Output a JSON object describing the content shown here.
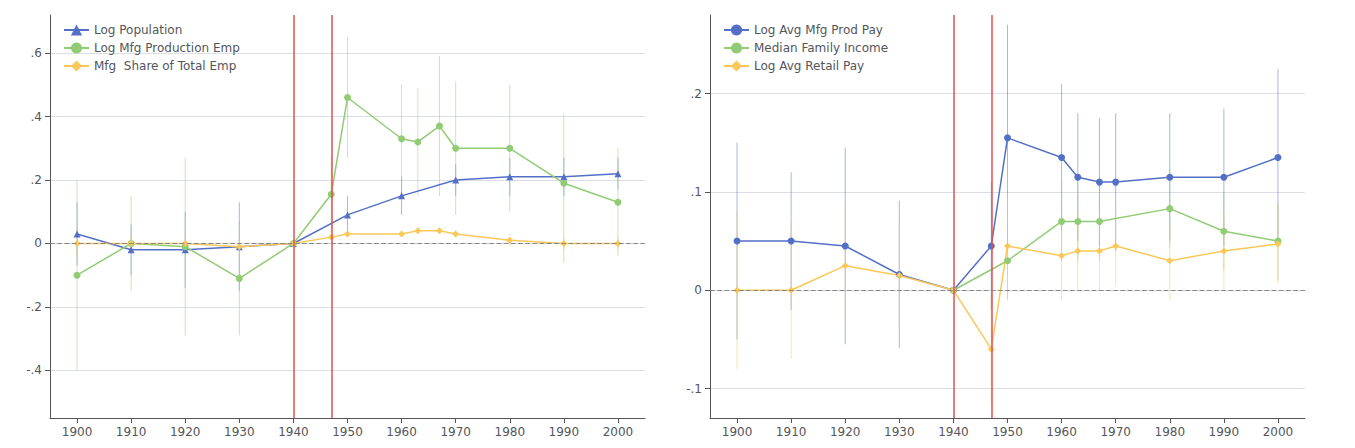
{
  "chart_data": [
    {
      "type": "line",
      "legend": "upper left",
      "grid": true,
      "xlim": [
        1895,
        2005
      ],
      "xticks": [
        1900,
        1910,
        1920,
        1930,
        1940,
        1950,
        1960,
        1970,
        1980,
        1990,
        2000
      ],
      "ylim": [
        -0.55,
        0.72
      ],
      "yticks": [
        {
          "value": -0.4,
          "label": "-.4"
        },
        {
          "value": -0.2,
          "label": "-.2"
        },
        0,
        {
          "value": 0.2,
          "label": ".2"
        },
        {
          "value": 0.4,
          "label": ".4"
        },
        {
          "value": 0.6,
          "label": ".6"
        }
      ],
      "vlines": [
        {
          "x": 1940,
          "color": "#e05050"
        },
        {
          "x": 1947,
          "color": "#e05050"
        }
      ],
      "hlines": [
        {
          "y": 0,
          "line_style": "dashed"
        }
      ],
      "series": [
        {
          "name": "Log Population",
          "marker": "triangle",
          "x": [
            1900,
            1910,
            1920,
            1930,
            1940,
            1950,
            1960,
            1970,
            1980,
            1990,
            2000
          ],
          "values": [
            0.03,
            -0.02,
            -0.02,
            -0.01,
            0.0,
            0.09,
            0.15,
            0.2,
            0.21,
            0.21,
            0.22
          ],
          "yerr_lo": [
            0.1,
            0.08,
            0.12,
            0.14,
            0.0,
            0.06,
            0.06,
            0.05,
            0.06,
            0.06,
            0.05
          ],
          "yerr_hi": [
            0.1,
            0.08,
            0.12,
            0.14,
            0.0,
            0.06,
            0.06,
            0.05,
            0.06,
            0.06,
            0.05
          ]
        },
        {
          "name": "Log Mfg Production Emp",
          "marker": "circle",
          "x": [
            1900,
            1910,
            1920,
            1930,
            1940,
            1947,
            1950,
            1960,
            1963,
            1967,
            1970,
            1980,
            1990,
            2000
          ],
          "values": [
            -0.1,
            0.0,
            -0.01,
            -0.11,
            0.0,
            0.155,
            0.46,
            0.33,
            0.32,
            0.37,
            0.3,
            0.3,
            0.19,
            0.13
          ],
          "yerr_lo": [
            0.3,
            0.15,
            0.28,
            0.18,
            0.0,
            0.12,
            0.19,
            0.17,
            0.17,
            0.22,
            0.21,
            0.2,
            0.25,
            0.17
          ],
          "yerr_hi": [
            0.3,
            0.15,
            0.28,
            0.18,
            0.0,
            0.12,
            0.19,
            0.17,
            0.17,
            0.22,
            0.21,
            0.2,
            0.22,
            0.17
          ]
        },
        {
          "name": "Mfg  Share of Total Emp",
          "marker": "diamond",
          "x": [
            1900,
            1910,
            1920,
            1930,
            1940,
            1947,
            1950,
            1960,
            1963,
            1967,
            1970,
            1980,
            1990,
            2000
          ],
          "values": [
            0.0,
            0.0,
            0.0,
            -0.01,
            0.0,
            0.02,
            0.03,
            0.03,
            0.04,
            0.04,
            0.03,
            0.01,
            0.0,
            0.0
          ],
          "yerr_lo": [
            0.04,
            0.03,
            0.03,
            0.03,
            0.0,
            0.01,
            0.01,
            0.01,
            0.01,
            0.01,
            0.01,
            0.02,
            0.02,
            0.02
          ],
          "yerr_hi": [
            0.04,
            0.03,
            0.03,
            0.03,
            0.0,
            0.01,
            0.01,
            0.01,
            0.01,
            0.01,
            0.01,
            0.02,
            0.02,
            0.02
          ]
        }
      ]
    },
    {
      "type": "line",
      "legend": "upper left",
      "grid": true,
      "xlim": [
        1895,
        2005
      ],
      "xticks": [
        1900,
        1910,
        1920,
        1930,
        1940,
        1950,
        1960,
        1970,
        1980,
        1990,
        2000
      ],
      "ylim": [
        -0.13,
        0.28
      ],
      "yticks": [
        {
          "value": -0.1,
          "label": "-.1"
        },
        0,
        {
          "value": 0.1,
          "label": ".1"
        },
        {
          "value": 0.2,
          "label": ".2"
        }
      ],
      "vlines": [
        {
          "x": 1940,
          "color": "#e05050"
        },
        {
          "x": 1947,
          "color": "#e05050"
        }
      ],
      "hlines": [
        {
          "y": 0,
          "line_style": "dashed"
        }
      ],
      "series": [
        {
          "name": "Log Avg Mfg Prod Pay",
          "marker": "circle",
          "x": [
            1900,
            1910,
            1920,
            1930,
            1940,
            1947,
            1950,
            1960,
            1963,
            1967,
            1970,
            1980,
            1990,
            2000
          ],
          "values": [
            0.05,
            0.05,
            0.045,
            0.016,
            0.0,
            0.045,
            0.155,
            0.135,
            0.115,
            0.11,
            0.11,
            0.115,
            0.115,
            0.135
          ],
          "yerr_lo": [
            0.1,
            0.07,
            0.1,
            0.075,
            0.0,
            0.065,
            0.115,
            0.075,
            0.065,
            0.065,
            0.07,
            0.065,
            0.07,
            0.09
          ],
          "yerr_hi": [
            0.1,
            0.07,
            0.1,
            0.075,
            0.0,
            0.065,
            0.115,
            0.075,
            0.065,
            0.065,
            0.07,
            0.065,
            0.07,
            0.09
          ]
        },
        {
          "name": "Median Family Income",
          "marker": "circle",
          "x": [
            1940,
            1950,
            1960,
            1963,
            1967,
            1980,
            1990,
            2000
          ],
          "values": [
            0.0,
            0.03,
            0.07,
            0.07,
            0.07,
            0.083,
            0.06,
            0.05
          ],
          "yerr_lo": [
            0.0,
            0.04,
            0.04,
            0.04,
            0.04,
            0.04,
            0.04,
            0.04
          ],
          "yerr_hi": [
            0.0,
            0.04,
            0.04,
            0.04,
            0.04,
            0.04,
            0.04,
            0.04
          ]
        },
        {
          "name": "Log Avg Retail Pay",
          "marker": "diamond",
          "x": [
            1900,
            1910,
            1920,
            1930,
            1940,
            1947,
            1950,
            1960,
            1963,
            1967,
            1970,
            1980,
            1990,
            2000
          ],
          "values": [
            0.0,
            0.0,
            0.025,
            0.015,
            0.0,
            -0.06,
            0.045,
            0.035,
            0.04,
            0.04,
            0.045,
            0.03,
            0.04,
            0.047
          ],
          "yerr_lo": [
            0.08,
            0.07,
            0.06,
            0.055,
            0.0,
            0.055,
            0.05,
            0.045,
            0.04,
            0.04,
            0.04,
            0.04,
            0.04,
            0.04
          ],
          "yerr_hi": [
            0.08,
            0.07,
            0.06,
            0.055,
            0.0,
            0.055,
            0.05,
            0.045,
            0.04,
            0.04,
            0.04,
            0.04,
            0.04,
            0.04
          ]
        }
      ]
    }
  ]
}
